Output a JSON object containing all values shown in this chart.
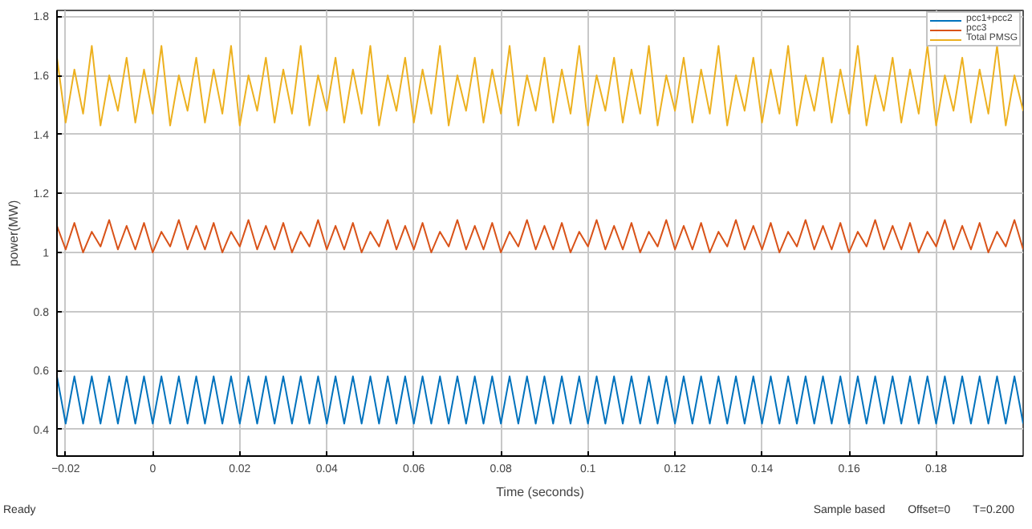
{
  "chart_data": {
    "type": "line",
    "xlabel": "Time (seconds)",
    "ylabel": "power(MW)",
    "xlim": [
      -0.022,
      0.2
    ],
    "ylim": [
      0.31,
      1.82
    ],
    "xticks": [
      -0.02,
      0,
      0.02,
      0.04,
      0.06,
      0.08,
      0.1,
      0.12,
      0.14,
      0.16,
      0.18
    ],
    "yticks": [
      0.4,
      0.6,
      0.8,
      1,
      1.2,
      1.4,
      1.6,
      1.8
    ],
    "grid": true,
    "legend": "top right",
    "line_style": "solid",
    "annotations": [
      "Ready",
      "Sample based",
      "Offset=0",
      "T=0.200"
    ],
    "x": [
      -0.022,
      -0.02,
      -0.018,
      -0.016,
      -0.014,
      -0.012,
      -0.01,
      -0.008,
      -0.006,
      -0.004,
      -0.002,
      0,
      0.002,
      0.004,
      0.006,
      0.008,
      0.01,
      0.012,
      0.014,
      0.016,
      0.018,
      0.02,
      0.022,
      0.024,
      0.026,
      0.028,
      0.03,
      0.032,
      0.034,
      0.036,
      0.038,
      0.04,
      0.042,
      0.044,
      0.046,
      0.048,
      0.05,
      0.052,
      0.054,
      0.056,
      0.058,
      0.06,
      0.062,
      0.064,
      0.066,
      0.068,
      0.07,
      0.072,
      0.074,
      0.076,
      0.078,
      0.08,
      0.082,
      0.084,
      0.086,
      0.088,
      0.09,
      0.092,
      0.094,
      0.096,
      0.098,
      0.1,
      0.102,
      0.104,
      0.106,
      0.108,
      0.11,
      0.112,
      0.114,
      0.116,
      0.118,
      0.12,
      0.122,
      0.124,
      0.126,
      0.128,
      0.13,
      0.132,
      0.134,
      0.136,
      0.138,
      0.14,
      0.142,
      0.144,
      0.146,
      0.148,
      0.15,
      0.152,
      0.154,
      0.156,
      0.158,
      0.16,
      0.162,
      0.164,
      0.166,
      0.168,
      0.17,
      0.172,
      0.174,
      0.176,
      0.178,
      0.18,
      0.182,
      0.184,
      0.186,
      0.188,
      0.19,
      0.192,
      0.194,
      0.196,
      0.198,
      0.2
    ],
    "series": [
      {
        "name": "pcc1+pcc2",
        "color": "#0072bd",
        "values": [
          0.58,
          0.42,
          0.58,
          0.42,
          0.58,
          0.42,
          0.58,
          0.42,
          0.58,
          0.42,
          0.58,
          0.42,
          0.58,
          0.42,
          0.58,
          0.42,
          0.58,
          0.42,
          0.58,
          0.42,
          0.58,
          0.42,
          0.58,
          0.42,
          0.58,
          0.42,
          0.58,
          0.42,
          0.58,
          0.42,
          0.58,
          0.42,
          0.58,
          0.42,
          0.58,
          0.42,
          0.58,
          0.42,
          0.58,
          0.42,
          0.58,
          0.42,
          0.58,
          0.42,
          0.58,
          0.42,
          0.58,
          0.42,
          0.58,
          0.42,
          0.58,
          0.42,
          0.58,
          0.42,
          0.58,
          0.42,
          0.58,
          0.42,
          0.58,
          0.42,
          0.58,
          0.42,
          0.58,
          0.42,
          0.58,
          0.42,
          0.58,
          0.42,
          0.58,
          0.42,
          0.58,
          0.42,
          0.58,
          0.42,
          0.58,
          0.42,
          0.58,
          0.42,
          0.58,
          0.42,
          0.58,
          0.42,
          0.58,
          0.42,
          0.58,
          0.42,
          0.58,
          0.42,
          0.58,
          0.42,
          0.58,
          0.42,
          0.58,
          0.42,
          0.58,
          0.42,
          0.58,
          0.42,
          0.58,
          0.42,
          0.58,
          0.42,
          0.58,
          0.42,
          0.58,
          0.42,
          0.58,
          0.42,
          0.58,
          0.42,
          0.58,
          0.42
        ]
      },
      {
        "name": "pcc3",
        "color": "#d95319",
        "values": [
          1.09,
          1.01,
          1.1,
          1.0,
          1.07,
          1.02,
          1.11,
          1.01,
          1.09,
          1.01,
          1.1,
          1.0,
          1.07,
          1.02,
          1.11,
          1.01,
          1.09,
          1.01,
          1.1,
          1.0,
          1.07,
          1.02,
          1.11,
          1.01,
          1.09,
          1.01,
          1.1,
          1.0,
          1.07,
          1.02,
          1.11,
          1.01,
          1.09,
          1.01,
          1.1,
          1.0,
          1.07,
          1.02,
          1.11,
          1.01,
          1.09,
          1.01,
          1.1,
          1.0,
          1.07,
          1.02,
          1.11,
          1.01,
          1.09,
          1.01,
          1.1,
          1.0,
          1.07,
          1.02,
          1.11,
          1.01,
          1.09,
          1.01,
          1.1,
          1.0,
          1.07,
          1.02,
          1.11,
          1.01,
          1.09,
          1.01,
          1.1,
          1.0,
          1.07,
          1.02,
          1.11,
          1.01,
          1.09,
          1.01,
          1.1,
          1.0,
          1.07,
          1.02,
          1.11,
          1.01,
          1.09,
          1.01,
          1.1,
          1.0,
          1.07,
          1.02,
          1.11,
          1.01,
          1.09,
          1.01,
          1.1,
          1.0,
          1.07,
          1.02,
          1.11,
          1.01,
          1.09,
          1.01,
          1.1,
          1.0,
          1.07,
          1.02,
          1.11,
          1.01,
          1.09,
          1.01,
          1.1,
          1.0,
          1.07,
          1.02,
          1.11,
          1.01
        ]
      },
      {
        "name": "Total PMSG",
        "color": "#edb120",
        "values": [
          1.66,
          1.44,
          1.62,
          1.47,
          1.7,
          1.43,
          1.6,
          1.48,
          1.66,
          1.44,
          1.62,
          1.47,
          1.7,
          1.43,
          1.6,
          1.48,
          1.66,
          1.44,
          1.62,
          1.47,
          1.7,
          1.43,
          1.6,
          1.48,
          1.66,
          1.44,
          1.62,
          1.47,
          1.7,
          1.43,
          1.6,
          1.48,
          1.66,
          1.44,
          1.62,
          1.47,
          1.7,
          1.43,
          1.6,
          1.48,
          1.66,
          1.44,
          1.62,
          1.47,
          1.7,
          1.43,
          1.6,
          1.48,
          1.66,
          1.44,
          1.62,
          1.47,
          1.7,
          1.43,
          1.6,
          1.48,
          1.66,
          1.44,
          1.62,
          1.47,
          1.7,
          1.43,
          1.6,
          1.48,
          1.66,
          1.44,
          1.62,
          1.47,
          1.7,
          1.43,
          1.6,
          1.48,
          1.66,
          1.44,
          1.62,
          1.47,
          1.7,
          1.43,
          1.6,
          1.48,
          1.66,
          1.44,
          1.62,
          1.47,
          1.7,
          1.43,
          1.6,
          1.48,
          1.66,
          1.44,
          1.62,
          1.47,
          1.7,
          1.43,
          1.6,
          1.48,
          1.66,
          1.44,
          1.62,
          1.47,
          1.7,
          1.43,
          1.6,
          1.48,
          1.66,
          1.44,
          1.62,
          1.47,
          1.7,
          1.43,
          1.6,
          1.48
        ]
      }
    ]
  }
}
